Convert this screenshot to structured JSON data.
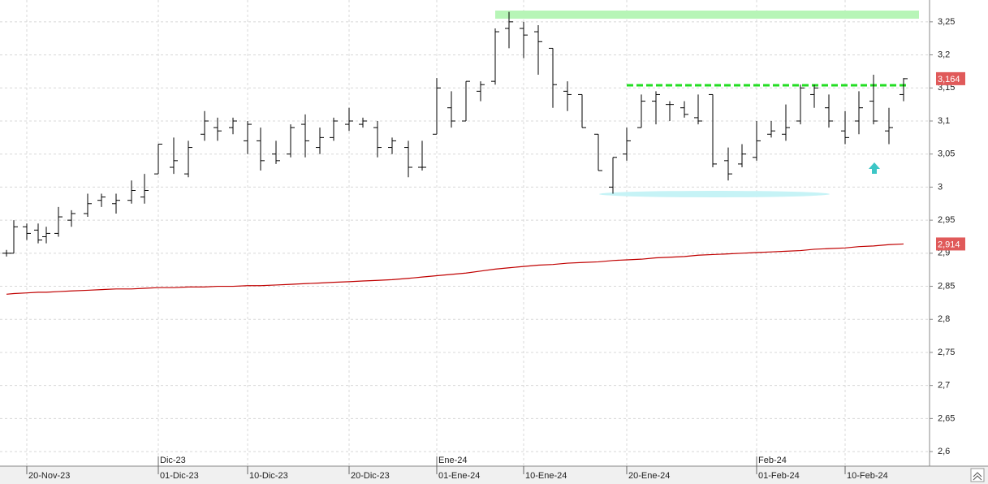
{
  "chart_data": {
    "type": "ohlc",
    "categories": [
      null,
      null,
      "20-Nov-23",
      null,
      null,
      null,
      null,
      null,
      null,
      null,
      null,
      null,
      "01-Dic-23",
      null,
      null,
      null,
      null,
      null,
      "10-Dic-23",
      null,
      null,
      null,
      null,
      null,
      null,
      "20-Dic-23",
      null,
      null,
      null,
      null,
      null,
      "01-Ene-24",
      null,
      null,
      null,
      null,
      null,
      "10-Ene-24",
      null,
      null,
      null,
      null,
      null,
      null,
      "20-Ene-24",
      null,
      null,
      null,
      null,
      null,
      null,
      null,
      null,
      "01-Feb-24",
      null,
      null,
      null,
      null,
      null,
      "10-Feb-24",
      null,
      null,
      null,
      null
    ],
    "month_ticks": [
      {
        "value": 12,
        "label": "Dic-23"
      },
      {
        "value": 31,
        "label": "Ene-24"
      },
      {
        "value": 53,
        "label": "Feb-24"
      }
    ],
    "open": [
      2.9,
      2.9,
      2.94,
      2.935,
      2.925,
      2.93,
      2.95,
      2.96,
      2.98,
      2.975,
      2.98,
      2.985,
      3.02,
      3.03,
      3.02,
      3.08,
      3.09,
      3.09,
      3.07,
      3.07,
      3.05,
      3.05,
      3.095,
      3.06,
      3.075,
      3.095,
      3.095,
      3.09,
      3.06,
      3.06,
      3.03,
      3.08,
      3.12,
      3.1,
      3.145,
      3.16,
      3.24,
      3.24,
      3.235,
      3.21,
      3.145,
      3.14,
      3.08,
      3.0,
      3.05,
      3.09,
      3.13,
      3.125,
      3.12,
      3.105,
      3.14,
      3.04,
      3.035,
      3.045,
      3.08,
      3.08,
      3.1,
      3.14,
      3.12,
      3.085,
      3.1,
      3.13,
      3.085,
      3.14
    ],
    "high": [
      2.905,
      2.95,
      2.945,
      2.945,
      2.94,
      2.97,
      2.965,
      2.99,
      2.99,
      2.99,
      3.01,
      3.02,
      3.065,
      3.075,
      3.07,
      3.115,
      3.105,
      3.105,
      3.1,
      3.09,
      3.07,
      3.095,
      3.11,
      3.09,
      3.105,
      3.12,
      3.105,
      3.1,
      3.075,
      3.07,
      3.07,
      3.165,
      3.145,
      3.16,
      3.16,
      3.24,
      3.265,
      3.25,
      3.245,
      3.21,
      3.16,
      3.14,
      3.08,
      3.045,
      3.09,
      3.14,
      3.145,
      3.13,
      3.13,
      3.14,
      3.14,
      3.06,
      3.065,
      3.1,
      3.1,
      3.125,
      3.155,
      3.155,
      3.14,
      3.115,
      3.145,
      3.17,
      3.12,
      3.165
    ],
    "low": [
      2.895,
      2.9,
      2.92,
      2.915,
      2.915,
      2.925,
      2.94,
      2.955,
      2.97,
      2.96,
      2.975,
      2.975,
      3.02,
      3.02,
      3.015,
      3.07,
      3.07,
      3.08,
      3.05,
      3.025,
      3.035,
      3.045,
      3.045,
      3.05,
      3.07,
      3.085,
      3.09,
      3.045,
      3.05,
      3.015,
      3.025,
      3.08,
      3.09,
      3.1,
      3.13,
      3.155,
      3.21,
      3.195,
      3.17,
      3.12,
      3.115,
      3.09,
      3.025,
      2.99,
      3.04,
      3.09,
      3.095,
      3.1,
      3.105,
      3.095,
      3.03,
      3.01,
      3.03,
      3.04,
      3.075,
      3.07,
      3.095,
      3.12,
      3.09,
      3.065,
      3.08,
      3.095,
      3.065,
      3.13
    ],
    "close": [
      2.9,
      2.94,
      2.93,
      2.92,
      2.93,
      2.955,
      2.96,
      2.975,
      2.985,
      2.98,
      2.995,
      2.995,
      3.065,
      3.04,
      3.06,
      3.1,
      3.085,
      3.1,
      3.095,
      3.04,
      3.04,
      3.09,
      3.07,
      3.075,
      3.1,
      3.1,
      3.1,
      3.06,
      3.07,
      3.03,
      3.03,
      3.15,
      3.1,
      3.16,
      3.155,
      3.235,
      3.25,
      3.23,
      3.22,
      3.155,
      3.14,
      3.09,
      3.025,
      3.045,
      3.07,
      3.13,
      3.14,
      3.125,
      3.11,
      3.1,
      3.035,
      3.02,
      3.05,
      3.07,
      3.085,
      3.09,
      3.15,
      3.15,
      3.1,
      3.075,
      3.12,
      3.1,
      3.09,
      3.164
    ],
    "color": "#000000",
    "moving_average": {
      "color": "#c00000",
      "values": [
        2.838,
        2.839,
        2.84,
        2.841,
        2.841,
        2.842,
        2.843,
        2.844,
        2.845,
        2.846,
        2.846,
        2.847,
        2.848,
        2.848,
        2.849,
        2.849,
        2.85,
        2.85,
        2.851,
        2.851,
        2.852,
        2.853,
        2.854,
        2.855,
        2.856,
        2.857,
        2.858,
        2.859,
        2.86,
        2.862,
        2.864,
        2.866,
        2.868,
        2.87,
        2.873,
        2.876,
        2.878,
        2.88,
        2.882,
        2.883,
        2.885,
        2.886,
        2.887,
        2.889,
        2.89,
        2.891,
        2.893,
        2.894,
        2.895,
        2.897,
        2.898,
        2.899,
        2.9,
        2.901,
        2.902,
        2.903,
        2.904,
        2.906,
        2.907,
        2.908,
        2.91,
        2.911,
        2.913,
        2.914
      ]
    },
    "price_tags": [
      {
        "value": 3.164,
        "label": "3,164",
        "color": "#e05a5a"
      },
      {
        "value": 2.914,
        "label": "2,914",
        "color": "#e05a5a"
      }
    ],
    "ylim": [
      2.578,
      3.283
    ],
    "yticks": [
      {
        "value": 2.6,
        "label": "2,6"
      },
      {
        "value": 2.65,
        "label": "2,65"
      },
      {
        "value": 2.7,
        "label": "2,7"
      },
      {
        "value": 2.75,
        "label": "2,75"
      },
      {
        "value": 2.8,
        "label": "2,8"
      },
      {
        "value": 2.85,
        "label": "2,85"
      },
      {
        "value": 2.9,
        "label": "2,9"
      },
      {
        "value": 2.95,
        "label": "2,95"
      },
      {
        "value": 3,
        "label": "3"
      },
      {
        "value": 3.05,
        "label": "3,05"
      },
      {
        "value": 3.1,
        "label": "3,1"
      },
      {
        "value": 3.15,
        "label": "3,15"
      },
      {
        "value": 3.2,
        "label": "3,2"
      },
      {
        "value": 3.25,
        "label": "3,25"
      }
    ],
    "grid": true
  }
}
